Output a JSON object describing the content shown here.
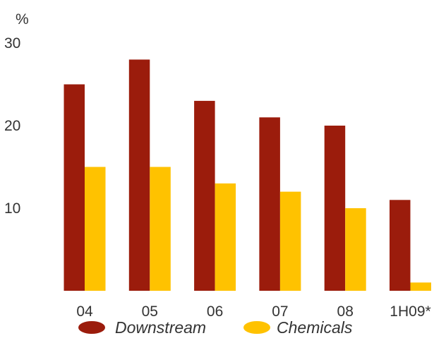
{
  "chart_data": {
    "type": "bar",
    "unit_label": "%",
    "categories": [
      "04",
      "05",
      "06",
      "07",
      "08",
      "1H09*"
    ],
    "series": [
      {
        "name": "Downstream",
        "color": "#9b1c0c",
        "values": [
          25,
          28,
          23,
          21,
          20,
          11
        ]
      },
      {
        "name": "Chemicals",
        "color": "#ffc200",
        "values": [
          15,
          15,
          13,
          12,
          10,
          1
        ]
      }
    ],
    "yticks": [
      "10",
      "20",
      "30"
    ],
    "ylim": [
      0,
      30
    ],
    "grid": false,
    "legend_position": "bottom"
  }
}
